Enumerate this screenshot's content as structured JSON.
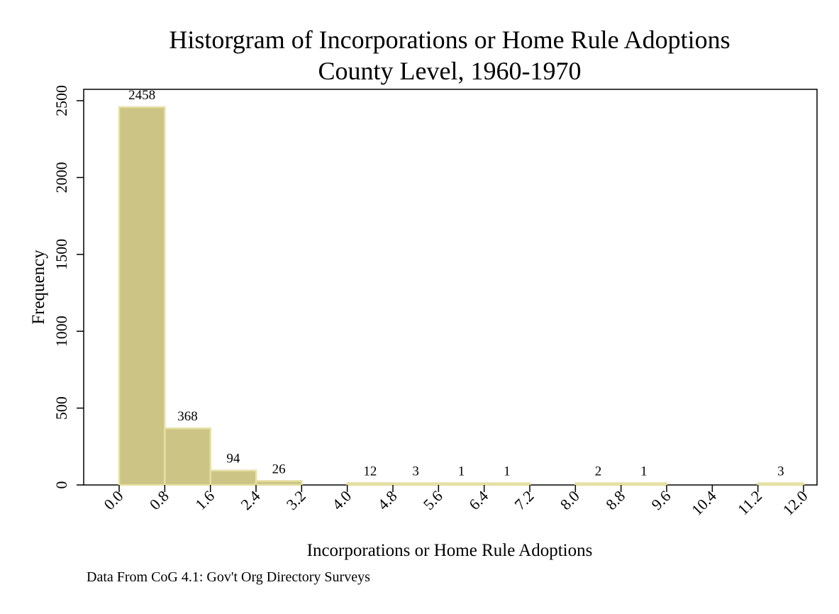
{
  "chart_data": {
    "type": "bar",
    "title": "Historgram of Incorporations or Home Rule Adoptions",
    "subtitle": "County Level, 1960-1970",
    "xlabel": "Incorporations or Home Rule Adoptions",
    "ylabel": "Frequency",
    "note": "Data From CoG 4.1: Gov't Org Directory Surveys",
    "bin_width": 0.8,
    "xlim": [
      0,
      12
    ],
    "ylim": [
      0,
      2500
    ],
    "xticks": [
      "0.0",
      "0.8",
      "1.6",
      "2.4",
      "3.2",
      "4.0",
      "4.8",
      "5.6",
      "6.4",
      "7.2",
      "8.0",
      "8.8",
      "9.6",
      "10.4",
      "11.2",
      "12.0"
    ],
    "yticks": [
      "0",
      "500",
      "1000",
      "1500",
      "2000",
      "2500"
    ],
    "bins": [
      {
        "start": 0.0,
        "value": 2458,
        "label": "2458"
      },
      {
        "start": 0.8,
        "value": 368,
        "label": "368"
      },
      {
        "start": 1.6,
        "value": 94,
        "label": "94"
      },
      {
        "start": 2.4,
        "value": 26,
        "label": "26"
      },
      {
        "start": 3.2,
        "value": 0,
        "label": ""
      },
      {
        "start": 4.0,
        "value": 12,
        "label": "12"
      },
      {
        "start": 4.8,
        "value": 3,
        "label": "3"
      },
      {
        "start": 5.6,
        "value": 1,
        "label": "1"
      },
      {
        "start": 6.4,
        "value": 1,
        "label": "1"
      },
      {
        "start": 7.2,
        "value": 0,
        "label": ""
      },
      {
        "start": 8.0,
        "value": 2,
        "label": "2"
      },
      {
        "start": 8.8,
        "value": 1,
        "label": "1"
      },
      {
        "start": 9.6,
        "value": 0,
        "label": ""
      },
      {
        "start": 10.4,
        "value": 0,
        "label": ""
      },
      {
        "start": 11.2,
        "value": 3,
        "label": "3"
      }
    ],
    "colors": {
      "bar_fill": "#cbc484",
      "bar_outline": "#e6e0a6",
      "axis": "#000000",
      "background": "#ffffff"
    },
    "grid": false
  }
}
